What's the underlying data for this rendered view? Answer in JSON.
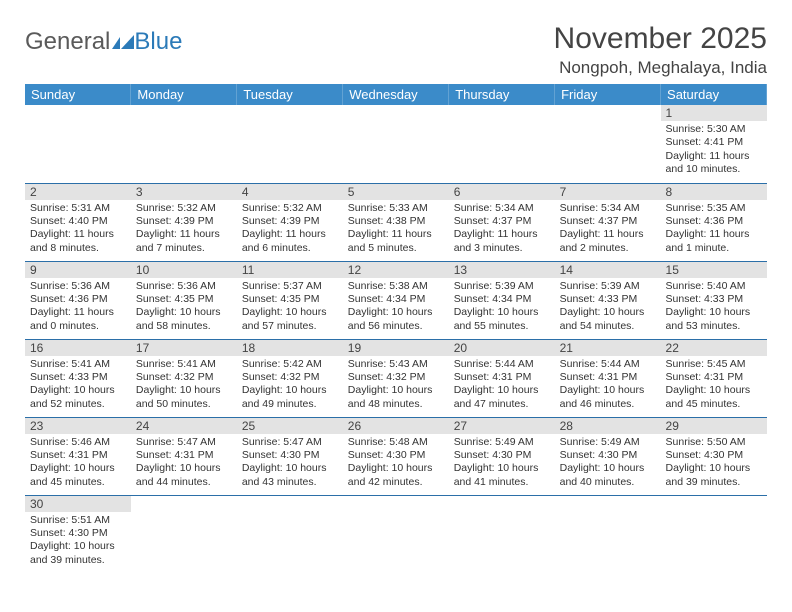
{
  "logo": {
    "text1": "General",
    "text2": "Blue"
  },
  "title": "November 2025",
  "location": "Nongpoh, Meghalaya, India",
  "colors": {
    "header_bg": "#3b8bc9",
    "header_text": "#ffffff",
    "daynum_bg": "#e3e3e3",
    "row_border": "#2b6fa8",
    "logo_blue": "#2b7ab8"
  },
  "day_headers": [
    "Sunday",
    "Monday",
    "Tuesday",
    "Wednesday",
    "Thursday",
    "Friday",
    "Saturday"
  ],
  "weeks": [
    [
      null,
      null,
      null,
      null,
      null,
      null,
      {
        "n": "1",
        "sr": "5:30 AM",
        "ss": "4:41 PM",
        "dl": "11 hours and 10 minutes."
      }
    ],
    [
      {
        "n": "2",
        "sr": "5:31 AM",
        "ss": "4:40 PM",
        "dl": "11 hours and 8 minutes."
      },
      {
        "n": "3",
        "sr": "5:32 AM",
        "ss": "4:39 PM",
        "dl": "11 hours and 7 minutes."
      },
      {
        "n": "4",
        "sr": "5:32 AM",
        "ss": "4:39 PM",
        "dl": "11 hours and 6 minutes."
      },
      {
        "n": "5",
        "sr": "5:33 AM",
        "ss": "4:38 PM",
        "dl": "11 hours and 5 minutes."
      },
      {
        "n": "6",
        "sr": "5:34 AM",
        "ss": "4:37 PM",
        "dl": "11 hours and 3 minutes."
      },
      {
        "n": "7",
        "sr": "5:34 AM",
        "ss": "4:37 PM",
        "dl": "11 hours and 2 minutes."
      },
      {
        "n": "8",
        "sr": "5:35 AM",
        "ss": "4:36 PM",
        "dl": "11 hours and 1 minute."
      }
    ],
    [
      {
        "n": "9",
        "sr": "5:36 AM",
        "ss": "4:36 PM",
        "dl": "11 hours and 0 minutes."
      },
      {
        "n": "10",
        "sr": "5:36 AM",
        "ss": "4:35 PM",
        "dl": "10 hours and 58 minutes."
      },
      {
        "n": "11",
        "sr": "5:37 AM",
        "ss": "4:35 PM",
        "dl": "10 hours and 57 minutes."
      },
      {
        "n": "12",
        "sr": "5:38 AM",
        "ss": "4:34 PM",
        "dl": "10 hours and 56 minutes."
      },
      {
        "n": "13",
        "sr": "5:39 AM",
        "ss": "4:34 PM",
        "dl": "10 hours and 55 minutes."
      },
      {
        "n": "14",
        "sr": "5:39 AM",
        "ss": "4:33 PM",
        "dl": "10 hours and 54 minutes."
      },
      {
        "n": "15",
        "sr": "5:40 AM",
        "ss": "4:33 PM",
        "dl": "10 hours and 53 minutes."
      }
    ],
    [
      {
        "n": "16",
        "sr": "5:41 AM",
        "ss": "4:33 PM",
        "dl": "10 hours and 52 minutes."
      },
      {
        "n": "17",
        "sr": "5:41 AM",
        "ss": "4:32 PM",
        "dl": "10 hours and 50 minutes."
      },
      {
        "n": "18",
        "sr": "5:42 AM",
        "ss": "4:32 PM",
        "dl": "10 hours and 49 minutes."
      },
      {
        "n": "19",
        "sr": "5:43 AM",
        "ss": "4:32 PM",
        "dl": "10 hours and 48 minutes."
      },
      {
        "n": "20",
        "sr": "5:44 AM",
        "ss": "4:31 PM",
        "dl": "10 hours and 47 minutes."
      },
      {
        "n": "21",
        "sr": "5:44 AM",
        "ss": "4:31 PM",
        "dl": "10 hours and 46 minutes."
      },
      {
        "n": "22",
        "sr": "5:45 AM",
        "ss": "4:31 PM",
        "dl": "10 hours and 45 minutes."
      }
    ],
    [
      {
        "n": "23",
        "sr": "5:46 AM",
        "ss": "4:31 PM",
        "dl": "10 hours and 45 minutes."
      },
      {
        "n": "24",
        "sr": "5:47 AM",
        "ss": "4:31 PM",
        "dl": "10 hours and 44 minutes."
      },
      {
        "n": "25",
        "sr": "5:47 AM",
        "ss": "4:30 PM",
        "dl": "10 hours and 43 minutes."
      },
      {
        "n": "26",
        "sr": "5:48 AM",
        "ss": "4:30 PM",
        "dl": "10 hours and 42 minutes."
      },
      {
        "n": "27",
        "sr": "5:49 AM",
        "ss": "4:30 PM",
        "dl": "10 hours and 41 minutes."
      },
      {
        "n": "28",
        "sr": "5:49 AM",
        "ss": "4:30 PM",
        "dl": "10 hours and 40 minutes."
      },
      {
        "n": "29",
        "sr": "5:50 AM",
        "ss": "4:30 PM",
        "dl": "10 hours and 39 minutes."
      }
    ],
    [
      {
        "n": "30",
        "sr": "5:51 AM",
        "ss": "4:30 PM",
        "dl": "10 hours and 39 minutes."
      },
      null,
      null,
      null,
      null,
      null,
      null
    ]
  ],
  "labels": {
    "sunrise": "Sunrise: ",
    "sunset": "Sunset: ",
    "daylight": "Daylight: "
  }
}
